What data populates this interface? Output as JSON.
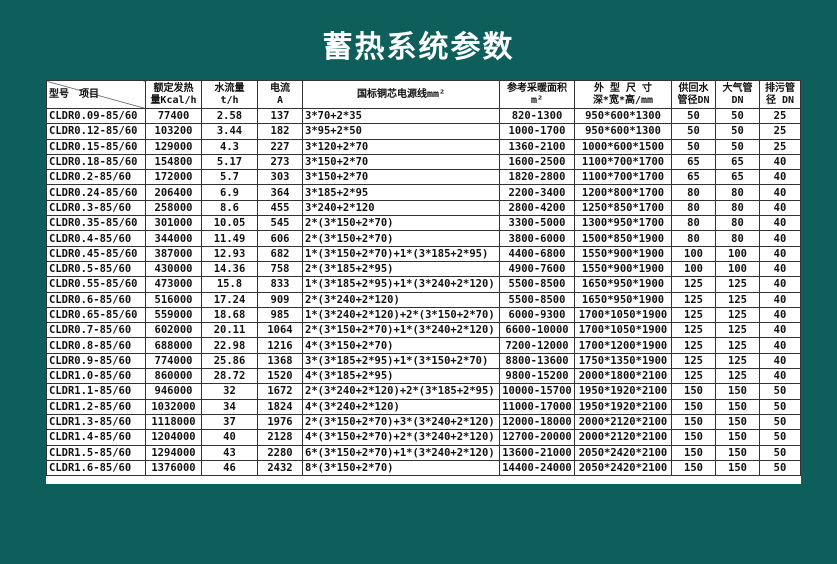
{
  "title": "蓄热系统参数",
  "table": {
    "headers": [
      [
        "型号　项目"
      ],
      [
        "额定发热",
        "量Kcal/h"
      ],
      [
        "水流量",
        "t/h"
      ],
      [
        "电流",
        "A"
      ],
      [
        "国标铜芯电源线mm²"
      ],
      [
        "参考采暖面积",
        "m²"
      ],
      [
        "外 型 尺 寸",
        "深*宽*高/mm"
      ],
      [
        "供回水",
        "管径DN"
      ],
      [
        "大气管",
        "DN"
      ],
      [
        "排污管",
        "径 DN"
      ]
    ],
    "rows": [
      [
        "CLDR0.09-85/60",
        "77400",
        "2.58",
        "137",
        "3*70+2*35",
        "820-1300",
        "950*600*1300",
        "50",
        "50",
        "25"
      ],
      [
        "CLDR0.12-85/60",
        "103200",
        "3.44",
        "182",
        "3*95+2*50",
        "1000-1700",
        "950*600*1300",
        "50",
        "50",
        "25"
      ],
      [
        "CLDR0.15-85/60",
        "129000",
        "4.3",
        "227",
        "3*120+2*70",
        "1360-2100",
        "1000*600*1500",
        "50",
        "50",
        "25"
      ],
      [
        "CLDR0.18-85/60",
        "154800",
        "5.17",
        "273",
        "3*150+2*70",
        "1600-2500",
        "1100*700*1700",
        "65",
        "65",
        "40"
      ],
      [
        "CLDR0.2-85/60",
        "172000",
        "5.7",
        "303",
        "3*150+2*70",
        "1820-2800",
        "1100*700*1700",
        "65",
        "65",
        "40"
      ],
      [
        "CLDR0.24-85/60",
        "206400",
        "6.9",
        "364",
        "3*185+2*95",
        "2200-3400",
        "1200*800*1700",
        "80",
        "80",
        "40"
      ],
      [
        "CLDR0.3-85/60",
        "258000",
        "8.6",
        "455",
        "3*240+2*120",
        "2800-4200",
        "1250*850*1700",
        "80",
        "80",
        "40"
      ],
      [
        "CLDR0.35-85/60",
        "301000",
        "10.05",
        "545",
        "2*(3*150+2*70)",
        "3300-5000",
        "1300*950*1700",
        "80",
        "80",
        "40"
      ],
      [
        "CLDR0.4-85/60",
        "344000",
        "11.49",
        "606",
        "2*(3*150+2*70)",
        "3800-6000",
        "1500*850*1900",
        "80",
        "80",
        "40"
      ],
      [
        "CLDR0.45-85/60",
        "387000",
        "12.93",
        "682",
        "1*(3*150+2*70)+1*(3*185+2*95)",
        "4400-6800",
        "1550*900*1900",
        "100",
        "100",
        "40"
      ],
      [
        "CLDR0.5-85/60",
        "430000",
        "14.36",
        "758",
        "2*(3*185+2*95)",
        "4900-7600",
        "1550*900*1900",
        "100",
        "100",
        "40"
      ],
      [
        "CLDR0.55-85/60",
        "473000",
        "15.8",
        "833",
        "1*(3*185+2*95)+1*(3*240+2*120)",
        "5500-8500",
        "1650*950*1900",
        "125",
        "125",
        "40"
      ],
      [
        "CLDR0.6-85/60",
        "516000",
        "17.24",
        "909",
        "2*(3*240+2*120)",
        "5500-8500",
        "1650*950*1900",
        "125",
        "125",
        "40"
      ],
      [
        "CLDR0.65-85/60",
        "559000",
        "18.68",
        "985",
        "1*(3*240+2*120)+2*(3*150+2*70)",
        "6000-9300",
        "1700*1050*1900",
        "125",
        "125",
        "40"
      ],
      [
        "CLDR0.7-85/60",
        "602000",
        "20.11",
        "1064",
        "2*(3*150+2*70)+1*(3*240+2*120)",
        "6600-10000",
        "1700*1050*1900",
        "125",
        "125",
        "40"
      ],
      [
        "CLDR0.8-85/60",
        "688000",
        "22.98",
        "1216",
        "4*(3*150+2*70)",
        "7200-12000",
        "1700*1200*1900",
        "125",
        "125",
        "40"
      ],
      [
        "CLDR0.9-85/60",
        "774000",
        "25.86",
        "1368",
        "3*(3*185+2*95)+1*(3*150+2*70)",
        "8800-13600",
        "1750*1350*1900",
        "125",
        "125",
        "40"
      ],
      [
        "CLDR1.0-85/60",
        "860000",
        "28.72",
        "1520",
        "4*(3*185+2*95)",
        "9800-15200",
        "2000*1800*2100",
        "125",
        "125",
        "40"
      ],
      [
        "CLDR1.1-85/60",
        "946000",
        "32",
        "1672",
        "2*(3*240+2*120)+2*(3*185+2*95)",
        "10000-15700",
        "1950*1920*2100",
        "150",
        "150",
        "50"
      ],
      [
        "CLDR1.2-85/60",
        "1032000",
        "34",
        "1824",
        "4*(3*240+2*120)",
        "11000-17000",
        "1950*1920*2100",
        "150",
        "150",
        "50"
      ],
      [
        "CLDR1.3-85/60",
        "1118000",
        "37",
        "1976",
        "2*(3*150+2*70)+3*(3*240+2*120)",
        "12000-18000",
        "2000*2120*2100",
        "150",
        "150",
        "50"
      ],
      [
        "CLDR1.4-85/60",
        "1204000",
        "40",
        "2128",
        "4*(3*150+2*70)+2*(3*240+2*120)",
        "12700-20000",
        "2000*2120*2100",
        "150",
        "150",
        "50"
      ],
      [
        "CLDR1.5-85/60",
        "1294000",
        "43",
        "2280",
        "6*(3*150+2*70)+1*(3*240+2*120)",
        "13600-21000",
        "2050*2420*2100",
        "150",
        "150",
        "50"
      ],
      [
        "CLDR1.6-85/60",
        "1376000",
        "46",
        "2432",
        "8*(3*150+2*70)",
        "14400-24000",
        "2050*2420*2100",
        "150",
        "150",
        "50"
      ]
    ]
  }
}
